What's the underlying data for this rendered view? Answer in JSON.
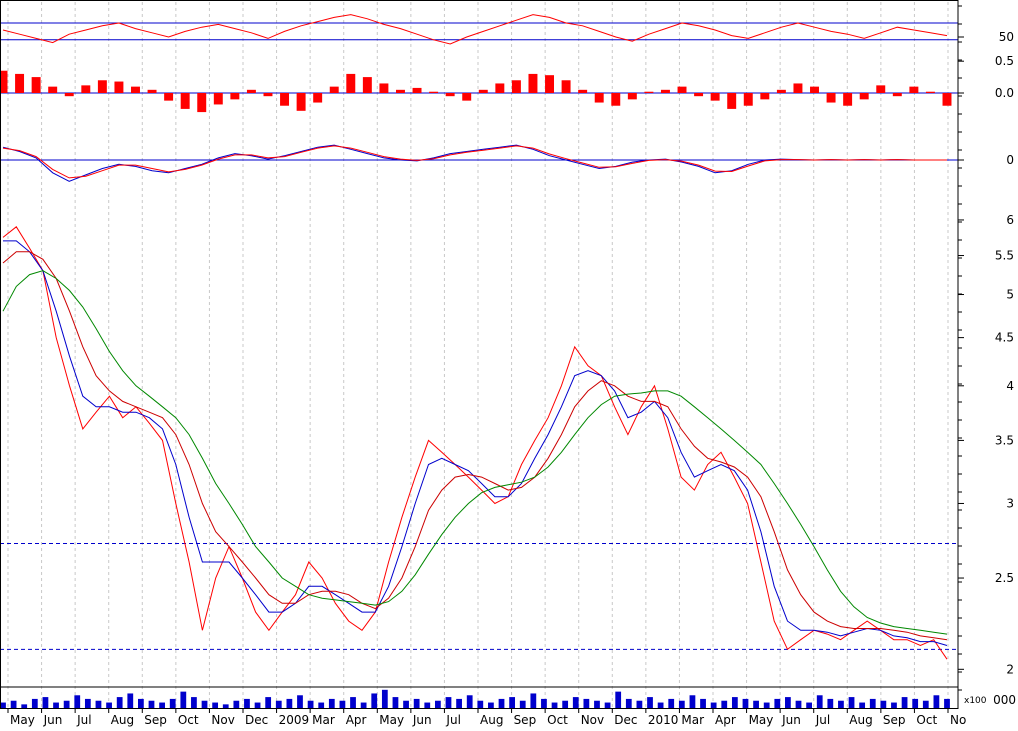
{
  "chart_data": [
    {
      "type": "line",
      "panel": "oscillator",
      "series": [
        {
          "color": "#ff0000",
          "values": [
            55,
            52,
            49,
            46,
            52,
            55,
            58,
            60,
            56,
            53,
            50,
            54,
            57,
            59,
            56,
            53,
            49,
            54,
            58,
            61,
            64,
            66,
            63,
            59,
            56,
            52,
            48,
            45,
            50,
            54,
            58,
            62,
            66,
            64,
            60,
            58,
            54,
            50,
            47,
            52,
            56,
            60,
            58,
            55,
            51,
            49,
            53,
            57,
            60,
            57,
            54,
            52,
            49,
            53,
            57,
            55,
            53,
            51
          ]
        }
      ],
      "reference_lines": [
        {
          "value": 60,
          "color": "#0000cc"
        },
        {
          "value": 48,
          "color": "#0000cc"
        }
      ],
      "ticks": [
        "50"
      ],
      "ylim": [
        35,
        75
      ]
    },
    {
      "type": "bar",
      "panel": "histogram",
      "series": [
        {
          "color": "#ff0000",
          "values": [
            0.35,
            0.3,
            0.25,
            0.1,
            -0.05,
            0.12,
            0.2,
            0.18,
            0.1,
            0.05,
            -0.12,
            -0.25,
            -0.3,
            -0.18,
            -0.1,
            0.05,
            -0.05,
            -0.2,
            -0.28,
            -0.15,
            0.1,
            0.3,
            0.25,
            0.15,
            0.05,
            0.08,
            0.02,
            -0.05,
            -0.12,
            0.05,
            0.15,
            0.2,
            0.3,
            0.28,
            0.2,
            0.05,
            -0.15,
            -0.2,
            -0.1,
            0.02,
            0.05,
            0.1,
            -0.05,
            -0.12,
            -0.25,
            -0.2,
            -0.1,
            0.05,
            0.15,
            0.1,
            -0.15,
            -0.2,
            -0.1,
            0.12,
            -0.05,
            0.1,
            0.02,
            -0.2
          ]
        }
      ],
      "reference_lines": [
        {
          "value": 0,
          "color": "#0000cc"
        }
      ],
      "ticks": [
        "0.5",
        "0.0"
      ],
      "ylim": [
        -0.55,
        0.55
      ]
    },
    {
      "type": "line",
      "panel": "macd",
      "series": [
        {
          "color": "#0000cc",
          "values": [
            0.3,
            0.2,
            0.05,
            -0.3,
            -0.5,
            -0.35,
            -0.2,
            -0.1,
            -0.15,
            -0.25,
            -0.3,
            -0.2,
            -0.1,
            0.05,
            0.15,
            0.1,
            0.02,
            0.1,
            0.2,
            0.3,
            0.35,
            0.25,
            0.15,
            0.05,
            0,
            -0.02,
            0.05,
            0.15,
            0.2,
            0.25,
            0.3,
            0.35,
            0.25,
            0.1,
            0,
            -0.1,
            -0.2,
            -0.15,
            -0.05,
            0,
            0.02,
            -0.05,
            -0.15,
            -0.3,
            -0.25,
            -0.1,
            0,
            0.02,
            0.01,
            0,
            0.01,
            0,
            0.01,
            0,
            0.01,
            0,
            0,
            0
          ]
        },
        {
          "color": "#ff0000",
          "values": [
            0.28,
            0.22,
            0.08,
            -0.22,
            -0.42,
            -0.38,
            -0.25,
            -0.12,
            -0.12,
            -0.2,
            -0.28,
            -0.22,
            -0.12,
            0.02,
            0.12,
            0.12,
            0.05,
            0.08,
            0.18,
            0.28,
            0.33,
            0.28,
            0.18,
            0.08,
            0.02,
            -0.01,
            0.03,
            0.12,
            0.18,
            0.23,
            0.28,
            0.33,
            0.28,
            0.14,
            0.03,
            -0.07,
            -0.17,
            -0.16,
            -0.08,
            -0.01,
            0.01,
            -0.03,
            -0.12,
            -0.26,
            -0.27,
            -0.14,
            -0.02,
            0.01,
            0.01,
            0,
            0.01,
            0,
            0.01,
            0,
            0.01,
            0,
            0,
            0
          ]
        }
      ],
      "reference_lines": [
        {
          "value": 0,
          "color": "#0000cc"
        }
      ],
      "ticks": [
        "0"
      ],
      "ylim": [
        -0.75,
        0.75
      ]
    },
    {
      "type": "line",
      "panel": "price",
      "scale": "log",
      "x_labels": [
        "May",
        "Jun",
        "Jul",
        "Aug",
        "Sep",
        "Oct",
        "Nov",
        "Dec",
        "2009",
        "Mar",
        "Apr",
        "May",
        "Jun",
        "Jul",
        "Aug",
        "Sep",
        "Oct",
        "Nov",
        "Dec",
        "2010",
        "Mar",
        "Apr",
        "May",
        "Jun",
        "Jul",
        "Aug",
        "Sep",
        "Oct",
        "No"
      ],
      "y_ticks": [
        6.0,
        5.5,
        5.0,
        4.5,
        4.0,
        3.5,
        3.0,
        2.5,
        2.0
      ],
      "ylim": [
        1.92,
        6.3
      ],
      "reference_lines": [
        {
          "value": 2.72,
          "color": "#0000cc",
          "style": "dashed"
        },
        {
          "value": 2.1,
          "color": "#0000cc",
          "style": "dashed"
        }
      ],
      "series": [
        {
          "color": "#ff0000",
          "values": [
            5.75,
            5.9,
            5.6,
            5.3,
            4.5,
            4.0,
            3.6,
            3.75,
            3.9,
            3.7,
            3.8,
            3.65,
            3.5,
            3.0,
            2.6,
            2.2,
            2.5,
            2.7,
            2.5,
            2.3,
            2.2,
            2.3,
            2.4,
            2.6,
            2.5,
            2.35,
            2.25,
            2.2,
            2.3,
            2.6,
            2.9,
            3.2,
            3.5,
            3.4,
            3.3,
            3.2,
            3.1,
            3.0,
            3.05,
            3.3,
            3.5,
            3.7,
            4.0,
            4.4,
            4.2,
            4.1,
            3.8,
            3.55,
            3.8,
            4.0,
            3.6,
            3.2,
            3.1,
            3.3,
            3.4,
            3.2,
            3.0,
            2.6,
            2.25,
            2.1,
            2.15,
            2.2,
            2.18,
            2.15,
            2.2,
            2.25,
            2.2,
            2.15,
            2.15,
            2.12,
            2.15,
            2.05
          ]
        },
        {
          "color": "#0000cc",
          "values": [
            5.7,
            5.7,
            5.55,
            5.3,
            4.8,
            4.3,
            3.9,
            3.8,
            3.8,
            3.75,
            3.75,
            3.7,
            3.6,
            3.3,
            2.9,
            2.6,
            2.6,
            2.6,
            2.5,
            2.4,
            2.3,
            2.3,
            2.35,
            2.45,
            2.45,
            2.4,
            2.35,
            2.3,
            2.3,
            2.45,
            2.7,
            3.0,
            3.3,
            3.35,
            3.3,
            3.25,
            3.15,
            3.05,
            3.05,
            3.15,
            3.35,
            3.55,
            3.8,
            4.1,
            4.15,
            4.1,
            3.95,
            3.7,
            3.75,
            3.85,
            3.7,
            3.4,
            3.2,
            3.25,
            3.3,
            3.25,
            3.1,
            2.8,
            2.45,
            2.25,
            2.2,
            2.2,
            2.19,
            2.17,
            2.19,
            2.21,
            2.2,
            2.17,
            2.16,
            2.14,
            2.14,
            2.12
          ]
        },
        {
          "color": "#cc0000",
          "values": [
            5.4,
            5.55,
            5.55,
            5.45,
            5.2,
            4.8,
            4.4,
            4.1,
            3.95,
            3.85,
            3.8,
            3.75,
            3.7,
            3.55,
            3.3,
            3.0,
            2.8,
            2.7,
            2.6,
            2.5,
            2.4,
            2.35,
            2.35,
            2.4,
            2.42,
            2.42,
            2.4,
            2.35,
            2.32,
            2.38,
            2.5,
            2.7,
            2.95,
            3.1,
            3.2,
            3.22,
            3.2,
            3.15,
            3.1,
            3.12,
            3.2,
            3.35,
            3.55,
            3.8,
            3.95,
            4.05,
            4.0,
            3.9,
            3.85,
            3.85,
            3.8,
            3.6,
            3.45,
            3.35,
            3.32,
            3.28,
            3.2,
            3.05,
            2.8,
            2.55,
            2.4,
            2.3,
            2.25,
            2.22,
            2.21,
            2.21,
            2.21,
            2.2,
            2.19,
            2.17,
            2.16,
            2.15
          ]
        },
        {
          "color": "#008800",
          "values": [
            4.8,
            5.1,
            5.25,
            5.3,
            5.2,
            5.05,
            4.85,
            4.6,
            4.35,
            4.15,
            4.0,
            3.9,
            3.8,
            3.7,
            3.55,
            3.35,
            3.15,
            3.0,
            2.85,
            2.7,
            2.6,
            2.5,
            2.45,
            2.4,
            2.38,
            2.37,
            2.36,
            2.35,
            2.34,
            2.36,
            2.42,
            2.52,
            2.65,
            2.78,
            2.9,
            3.0,
            3.08,
            3.12,
            3.14,
            3.16,
            3.2,
            3.28,
            3.4,
            3.55,
            3.7,
            3.82,
            3.9,
            3.92,
            3.93,
            3.95,
            3.95,
            3.9,
            3.8,
            3.7,
            3.6,
            3.5,
            3.4,
            3.3,
            3.15,
            3.0,
            2.85,
            2.7,
            2.55,
            2.42,
            2.33,
            2.27,
            2.24,
            2.22,
            2.21,
            2.2,
            2.19,
            2.18
          ]
        }
      ]
    },
    {
      "type": "bar",
      "panel": "volume",
      "series": [
        {
          "color": "#0000cc",
          "values": [
            3,
            4,
            2,
            5,
            6,
            3,
            4,
            7,
            5,
            4,
            3,
            6,
            8,
            5,
            4,
            3,
            5,
            9,
            6,
            4,
            3,
            2,
            4,
            5,
            3,
            6,
            4,
            5,
            7,
            4,
            3,
            5,
            4,
            6,
            3,
            8,
            10,
            6,
            4,
            5,
            3,
            4,
            6,
            5,
            7,
            4,
            3,
            5,
            6,
            4,
            8,
            5,
            3,
            4,
            6,
            5,
            4,
            3,
            9,
            5,
            4,
            6,
            3,
            5,
            4,
            7,
            5,
            3,
            4,
            6,
            5,
            4,
            3,
            5,
            6,
            4,
            3,
            7,
            5,
            4,
            6,
            3,
            5,
            4,
            3,
            6,
            5,
            4,
            7,
            5
          ]
        }
      ],
      "ylim": [
        0,
        11
      ],
      "unit_label": "x100",
      "ticks": [
        "000"
      ]
    }
  ]
}
